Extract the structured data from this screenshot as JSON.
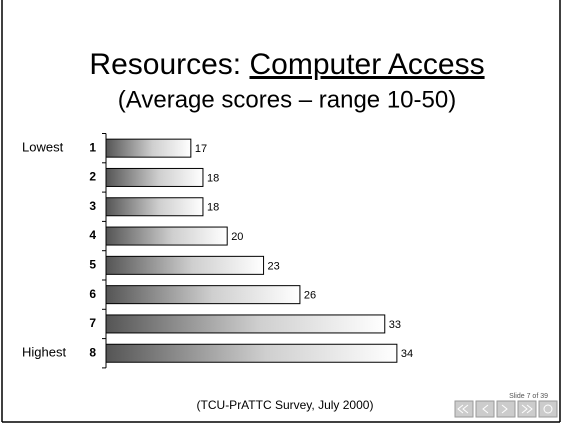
{
  "chart_data": {
    "type": "bar",
    "orientation": "horizontal",
    "title": "Resources:",
    "title_underlined": "Computer Access",
    "subtitle": "(Average scores – range 10-50)",
    "categories": [
      "1",
      "2",
      "3",
      "4",
      "5",
      "6",
      "7",
      "8"
    ],
    "row_labels": [
      "Lowest",
      null,
      null,
      null,
      null,
      null,
      null,
      "Highest"
    ],
    "values": [
      17,
      18,
      18,
      20,
      23,
      26,
      33,
      34
    ],
    "xlim": [
      10,
      50
    ],
    "footnote": "(TCU-PrATTC Survey, July 2000)",
    "slide_number": "Slide 7 of 39"
  }
}
